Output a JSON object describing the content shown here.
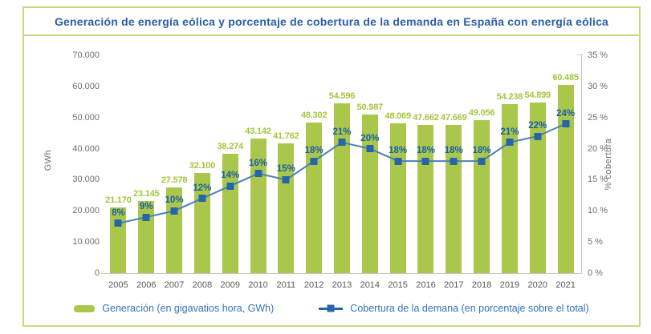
{
  "title": "Generación de energía eólica y porcentaje de cobertura de la demanda en España con energía eólica",
  "colors": {
    "bar": "#a9c84b",
    "bar_label": "#a3c63e",
    "line": "#4a7fb5",
    "marker": "#2565a8",
    "pct_label": "#1d5da6",
    "title_text": "#2b5ea7",
    "legend_text": "#3273b9",
    "axis_text": "#6d6e71",
    "frame_border": "#ccd87f",
    "axis_line": "#c6c6c6"
  },
  "chart_data": {
    "type": "bar+line combo",
    "categories": [
      "2005",
      "2006",
      "2007",
      "2008",
      "2009",
      "2010",
      "2011",
      "2012",
      "2013",
      "2014",
      "2015",
      "2016",
      "2017",
      "2018",
      "2019",
      "2020",
      "2021"
    ],
    "series": [
      {
        "name": "Generación (en gigavatios hora, GWh)",
        "type": "bar",
        "axis": "left",
        "values": [
          21170,
          23145,
          27578,
          32100,
          38274,
          43142,
          41762,
          48302,
          54596,
          50987,
          48069,
          47662,
          47669,
          49056,
          54238,
          54899,
          60485
        ],
        "labels": [
          "21.170",
          "23.145",
          "27.578",
          "32.100",
          "38.274",
          "43.142",
          "41.762",
          "48.302",
          "54.596",
          "50.987",
          "48.069",
          "47.662",
          "47.669",
          "49.056",
          "54.238",
          "54.899",
          "60.485"
        ]
      },
      {
        "name": "Cobertura de la demana (en porcentaje sobre el total)",
        "type": "line",
        "axis": "right",
        "values": [
          8,
          9,
          10,
          12,
          14,
          16,
          15,
          18,
          21,
          20,
          18,
          18,
          18,
          18,
          21,
          22,
          24
        ],
        "labels": [
          "8%",
          "9%",
          "10%",
          "12%",
          "14%",
          "16%",
          "15%",
          "18%",
          "21%",
          "20%",
          "18%",
          "18%",
          "18%",
          "18%",
          "21%",
          "22%",
          "24%"
        ]
      }
    ],
    "left_axis": {
      "label": "GWh",
      "min": 0,
      "max": 70000,
      "ticks": [
        "70.000",
        "60.000",
        "50.000",
        "40.000",
        "30.000",
        "20.000",
        "10.000",
        "0"
      ]
    },
    "right_axis": {
      "label": "% cobertura",
      "min": 0,
      "max": 35,
      "ticks": [
        "35 %",
        "30 %",
        "25 %",
        "20 %",
        "15 %",
        "10 %",
        "5 %",
        "0 %"
      ]
    },
    "grid": false,
    "legend_position": "bottom"
  }
}
